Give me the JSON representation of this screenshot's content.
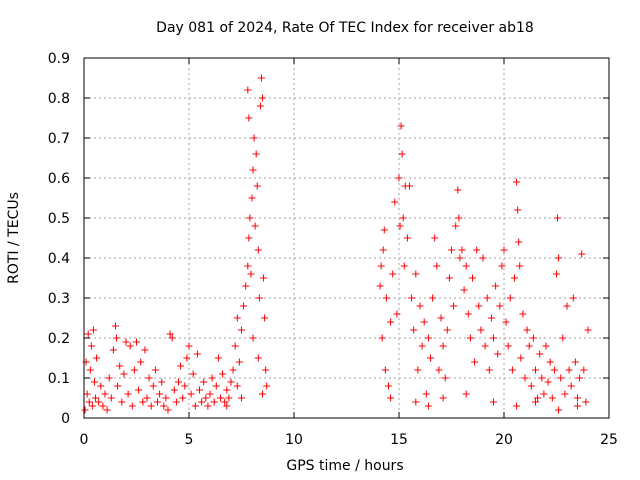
{
  "chart_data": {
    "type": "scatter",
    "title": "Day 081 of 2024, Rate Of TEC Index for receiver ab18",
    "xlabel": "GPS time / hours",
    "ylabel": "ROTI / TECUs",
    "xlim": [
      0,
      25
    ],
    "ylim": [
      0,
      0.9
    ],
    "xticks": [
      0,
      5,
      10,
      15,
      20,
      25
    ],
    "yticks": [
      0,
      0.1,
      0.2,
      0.3,
      0.4,
      0.5,
      0.6,
      0.7,
      0.8,
      0.9
    ],
    "xtick_labels": [
      "0",
      "5",
      "10",
      "15",
      "20",
      "25"
    ],
    "ytick_labels": [
      "0",
      "0.1",
      "0.2",
      "0.3",
      "0.4",
      "0.5",
      "0.6",
      "0.7",
      "0.8",
      "0.9"
    ],
    "grid": true,
    "marker": "+",
    "color": "#ff0000",
    "series": [
      {
        "points": [
          [
            0.05,
            0.02
          ],
          [
            0.1,
            0.14
          ],
          [
            0.15,
            0.06
          ],
          [
            0.2,
            0.21
          ],
          [
            0.25,
            0.04
          ],
          [
            0.3,
            0.12
          ],
          [
            0.35,
            0.18
          ],
          [
            0.4,
            0.03
          ],
          [
            0.45,
            0.22
          ],
          [
            0.5,
            0.09
          ],
          [
            0.55,
            0.05
          ],
          [
            0.6,
            0.15
          ],
          [
            0.7,
            0.04
          ],
          [
            0.8,
            0.08
          ],
          [
            0.9,
            0.03
          ],
          [
            1.0,
            0.06
          ],
          [
            1.1,
            0.02
          ],
          [
            1.2,
            0.1
          ],
          [
            1.3,
            0.05
          ],
          [
            1.4,
            0.17
          ],
          [
            1.5,
            0.23
          ],
          [
            1.55,
            0.2
          ],
          [
            1.6,
            0.08
          ],
          [
            1.7,
            0.13
          ],
          [
            1.8,
            0.04
          ],
          [
            1.9,
            0.11
          ],
          [
            2.0,
            0.19
          ],
          [
            2.1,
            0.06
          ],
          [
            2.2,
            0.18
          ],
          [
            2.3,
            0.03
          ],
          [
            2.4,
            0.12
          ],
          [
            2.5,
            0.19
          ],
          [
            2.6,
            0.07
          ],
          [
            2.7,
            0.14
          ],
          [
            2.8,
            0.04
          ],
          [
            2.9,
            0.17
          ],
          [
            3.0,
            0.05
          ],
          [
            3.1,
            0.1
          ],
          [
            3.2,
            0.03
          ],
          [
            3.3,
            0.08
          ],
          [
            3.4,
            0.12
          ],
          [
            3.5,
            0.04
          ],
          [
            3.6,
            0.06
          ],
          [
            3.7,
            0.09
          ],
          [
            3.8,
            0.03
          ],
          [
            3.9,
            0.05
          ],
          [
            4.0,
            0.02
          ],
          [
            4.1,
            0.21
          ],
          [
            4.2,
            0.2
          ],
          [
            4.3,
            0.07
          ],
          [
            4.4,
            0.04
          ],
          [
            4.5,
            0.09
          ],
          [
            4.6,
            0.13
          ],
          [
            4.7,
            0.05
          ],
          [
            4.8,
            0.08
          ],
          [
            4.9,
            0.15
          ],
          [
            5.0,
            0.18
          ],
          [
            5.1,
            0.06
          ],
          [
            5.2,
            0.11
          ],
          [
            5.3,
            0.03
          ],
          [
            5.4,
            0.16
          ],
          [
            5.5,
            0.07
          ],
          [
            5.6,
            0.04
          ],
          [
            5.7,
            0.09
          ],
          [
            5.8,
            0.05
          ],
          [
            5.9,
            0.03
          ],
          [
            6.0,
            0.06
          ],
          [
            6.1,
            0.1
          ],
          [
            6.2,
            0.04
          ],
          [
            6.3,
            0.08
          ],
          [
            6.4,
            0.15
          ],
          [
            6.5,
            0.05
          ],
          [
            6.6,
            0.11
          ],
          [
            6.7,
            0.04
          ],
          [
            6.8,
            0.07
          ],
          [
            6.9,
            0.05
          ],
          [
            7.0,
            0.09
          ],
          [
            7.1,
            0.12
          ],
          [
            7.2,
            0.18
          ],
          [
            7.3,
            0.25
          ],
          [
            7.4,
            0.14
          ],
          [
            7.5,
            0.22
          ],
          [
            7.6,
            0.28
          ],
          [
            7.7,
            0.33
          ],
          [
            7.8,
            0.38
          ],
          [
            7.85,
            0.45
          ],
          [
            7.9,
            0.5
          ],
          [
            7.95,
            0.36
          ],
          [
            8.0,
            0.55
          ],
          [
            8.05,
            0.62
          ],
          [
            8.1,
            0.7
          ],
          [
            8.15,
            0.48
          ],
          [
            8.2,
            0.66
          ],
          [
            8.25,
            0.58
          ],
          [
            8.3,
            0.42
          ],
          [
            8.35,
            0.3
          ],
          [
            8.4,
            0.78
          ],
          [
            8.45,
            0.85
          ],
          [
            8.5,
            0.8
          ],
          [
            8.55,
            0.35
          ],
          [
            8.6,
            0.25
          ],
          [
            8.65,
            0.12
          ],
          [
            8.7,
            0.08
          ],
          [
            7.8,
            0.82
          ],
          [
            7.85,
            0.75
          ],
          [
            8.05,
            0.2
          ],
          [
            8.3,
            0.15
          ],
          [
            8.5,
            0.06
          ],
          [
            7.5,
            0.05
          ],
          [
            7.3,
            0.08
          ],
          [
            6.8,
            0.03
          ],
          [
            14.1,
            0.33
          ],
          [
            14.15,
            0.38
          ],
          [
            14.2,
            0.2
          ],
          [
            14.25,
            0.42
          ],
          [
            14.3,
            0.47
          ],
          [
            14.35,
            0.12
          ],
          [
            14.4,
            0.3
          ],
          [
            14.5,
            0.08
          ],
          [
            14.6,
            0.24
          ],
          [
            14.7,
            0.36
          ],
          [
            14.8,
            0.54
          ],
          [
            14.9,
            0.26
          ],
          [
            15.0,
            0.6
          ],
          [
            15.05,
            0.48
          ],
          [
            15.1,
            0.73
          ],
          [
            15.15,
            0.66
          ],
          [
            15.2,
            0.5
          ],
          [
            15.25,
            0.38
          ],
          [
            15.3,
            0.58
          ],
          [
            15.4,
            0.45
          ],
          [
            15.5,
            0.58
          ],
          [
            15.6,
            0.3
          ],
          [
            15.7,
            0.22
          ],
          [
            15.8,
            0.36
          ],
          [
            15.9,
            0.12
          ],
          [
            16.0,
            0.28
          ],
          [
            16.1,
            0.18
          ],
          [
            16.2,
            0.24
          ],
          [
            16.3,
            0.06
          ],
          [
            16.4,
            0.2
          ],
          [
            16.5,
            0.15
          ],
          [
            16.6,
            0.3
          ],
          [
            16.7,
            0.45
          ],
          [
            16.8,
            0.38
          ],
          [
            16.9,
            0.12
          ],
          [
            17.0,
            0.25
          ],
          [
            17.1,
            0.18
          ],
          [
            17.2,
            0.1
          ],
          [
            17.3,
            0.22
          ],
          [
            17.4,
            0.35
          ],
          [
            17.5,
            0.42
          ],
          [
            17.6,
            0.28
          ],
          [
            17.7,
            0.48
          ],
          [
            17.8,
            0.57
          ],
          [
            17.85,
            0.5
          ],
          [
            17.9,
            0.4
          ],
          [
            18.0,
            0.42
          ],
          [
            18.1,
            0.32
          ],
          [
            18.2,
            0.38
          ],
          [
            18.3,
            0.26
          ],
          [
            18.4,
            0.2
          ],
          [
            18.5,
            0.35
          ],
          [
            18.6,
            0.14
          ],
          [
            18.7,
            0.42
          ],
          [
            18.8,
            0.28
          ],
          [
            18.9,
            0.22
          ],
          [
            19.0,
            0.4
          ],
          [
            19.1,
            0.18
          ],
          [
            19.2,
            0.3
          ],
          [
            19.3,
            0.12
          ],
          [
            19.4,
            0.25
          ],
          [
            19.5,
            0.2
          ],
          [
            19.6,
            0.33
          ],
          [
            19.7,
            0.16
          ],
          [
            19.8,
            0.28
          ],
          [
            19.9,
            0.38
          ],
          [
            20.0,
            0.42
          ],
          [
            20.1,
            0.24
          ],
          [
            20.2,
            0.18
          ],
          [
            20.3,
            0.3
          ],
          [
            20.4,
            0.12
          ],
          [
            20.5,
            0.35
          ],
          [
            20.6,
            0.59
          ],
          [
            20.65,
            0.52
          ],
          [
            20.7,
            0.44
          ],
          [
            20.75,
            0.38
          ],
          [
            20.8,
            0.15
          ],
          [
            20.9,
            0.26
          ],
          [
            21.0,
            0.1
          ],
          [
            21.1,
            0.22
          ],
          [
            21.2,
            0.18
          ],
          [
            21.3,
            0.08
          ],
          [
            21.4,
            0.2
          ],
          [
            21.5,
            0.12
          ],
          [
            21.6,
            0.05
          ],
          [
            21.7,
            0.16
          ],
          [
            21.8,
            0.1
          ],
          [
            21.9,
            0.06
          ],
          [
            22.0,
            0.18
          ],
          [
            22.1,
            0.09
          ],
          [
            22.2,
            0.14
          ],
          [
            22.3,
            0.05
          ],
          [
            22.4,
            0.12
          ],
          [
            22.5,
            0.36
          ],
          [
            22.55,
            0.5
          ],
          [
            22.6,
            0.4
          ],
          [
            22.7,
            0.1
          ],
          [
            22.8,
            0.2
          ],
          [
            22.9,
            0.06
          ],
          [
            23.0,
            0.28
          ],
          [
            23.1,
            0.12
          ],
          [
            23.2,
            0.08
          ],
          [
            23.3,
            0.3
          ],
          [
            23.4,
            0.14
          ],
          [
            23.5,
            0.05
          ],
          [
            23.6,
            0.1
          ],
          [
            23.7,
            0.41
          ],
          [
            23.8,
            0.12
          ],
          [
            23.9,
            0.04
          ],
          [
            24.0,
            0.22
          ],
          [
            14.6,
            0.05
          ],
          [
            15.8,
            0.04
          ],
          [
            16.4,
            0.03
          ],
          [
            17.1,
            0.05
          ],
          [
            18.2,
            0.06
          ],
          [
            19.5,
            0.04
          ],
          [
            20.6,
            0.03
          ],
          [
            21.5,
            0.04
          ],
          [
            22.6,
            0.02
          ],
          [
            23.5,
            0.03
          ]
        ]
      }
    ]
  }
}
